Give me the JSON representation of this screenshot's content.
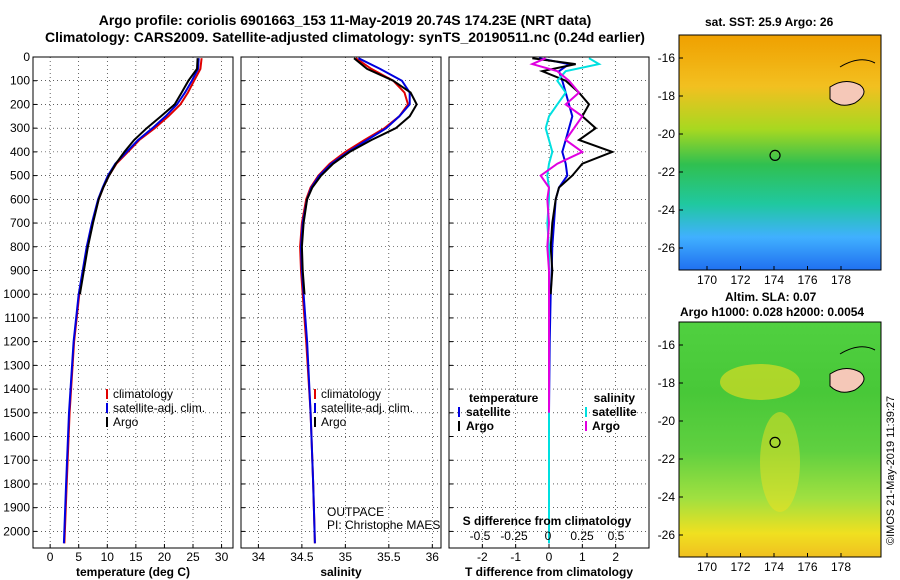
{
  "header": {
    "line1": "Argo profile: coriolis 6901663_153 11-May-2019 20.74S 174.23E (NRT data)",
    "line2": "Climatology: CARS2009. Satellite-adjusted climatology: synTS_20190511.nc (0.24d earlier)"
  },
  "colors": {
    "climatology": "#e00000",
    "satellite": "#0000e0",
    "argo": "#000000",
    "sat_salinity": "#00e0e0",
    "argo_salinity": "#e000e0"
  },
  "chart_data": [
    {
      "type": "line",
      "title": "",
      "xlabel": "temperature (deg C)",
      "ylabel": "",
      "xlim": [
        -3,
        32
      ],
      "ylim": [
        2070,
        0
      ],
      "xticks": [
        "0",
        "5",
        "10",
        "15",
        "20",
        "25",
        "30"
      ],
      "yticks": [
        "0",
        "100",
        "200",
        "300",
        "400",
        "500",
        "600",
        "700",
        "800",
        "900",
        "1000",
        "1100",
        "1200",
        "1300",
        "1400",
        "1500",
        "1600",
        "1700",
        "1800",
        "1900",
        "2000"
      ],
      "legend": [
        "climatology",
        "satellite-adj. clim.",
        "Argo"
      ],
      "series": [
        {
          "name": "climatology",
          "depth": [
            5,
            50,
            100,
            150,
            200,
            250,
            300,
            350,
            400,
            450,
            500,
            550,
            600,
            700,
            800,
            900,
            1000,
            1200,
            1500,
            1800,
            2050
          ],
          "values": [
            26.5,
            26.3,
            25.2,
            24.1,
            22.8,
            20.7,
            18.3,
            15.6,
            13.6,
            11.6,
            10.3,
            9.3,
            8.5,
            7.4,
            6.5,
            5.8,
            5.1,
            4.2,
            3.4,
            2.9,
            2.5
          ]
        },
        {
          "name": "satellite-adj. clim.",
          "depth": [
            5,
            50,
            100,
            150,
            200,
            250,
            300,
            350,
            400,
            450,
            500,
            550,
            600,
            700,
            800,
            900,
            1000,
            1200,
            1500,
            1800,
            2050
          ],
          "values": [
            26.0,
            25.9,
            24.8,
            23.6,
            22.2,
            20.2,
            17.9,
            15.4,
            13.4,
            11.4,
            10.1,
            9.2,
            8.4,
            7.3,
            6.4,
            5.7,
            5.0,
            4.1,
            3.3,
            2.8,
            2.4
          ]
        },
        {
          "name": "Argo",
          "depth": [
            5,
            50,
            100,
            150,
            200,
            250,
            300,
            350,
            400,
            450,
            500,
            550,
            600,
            700,
            800,
            900,
            1000
          ],
          "values": [
            25.8,
            25.7,
            24.2,
            23.0,
            21.8,
            19.4,
            16.9,
            14.7,
            13.0,
            11.5,
            10.3,
            9.3,
            8.5,
            7.5,
            6.6,
            5.9,
            5.2
          ]
        }
      ]
    },
    {
      "type": "line",
      "xlabel": "salinity",
      "xlim": [
        33.8,
        36.1
      ],
      "ylim": [
        2070,
        0
      ],
      "xticks": [
        "34",
        "34.5",
        "35",
        "35.5",
        "36"
      ],
      "legend": [
        "climatology",
        "satellite-adj. clim.",
        "Argo"
      ],
      "annotation": [
        "OUTPACE",
        "PI: Christophe MAES"
      ],
      "series": [
        {
          "name": "climatology",
          "depth": [
            5,
            50,
            100,
            150,
            200,
            250,
            300,
            350,
            400,
            450,
            500,
            550,
            600,
            700,
            800,
            900,
            1000,
            1200,
            1500,
            1800,
            2050
          ],
          "values": [
            35.12,
            35.3,
            35.55,
            35.68,
            35.72,
            35.62,
            35.45,
            35.22,
            35.0,
            34.82,
            34.69,
            34.6,
            34.55,
            34.5,
            34.48,
            34.49,
            34.51,
            34.55,
            34.6,
            34.63,
            34.65
          ]
        },
        {
          "name": "satellite-adj. clim.",
          "depth": [
            5,
            50,
            100,
            150,
            200,
            250,
            300,
            350,
            400,
            450,
            500,
            550,
            600,
            700,
            800,
            900,
            1000,
            1200,
            1500,
            1800,
            2050
          ],
          "values": [
            35.15,
            35.4,
            35.65,
            35.74,
            35.74,
            35.62,
            35.47,
            35.25,
            35.03,
            34.84,
            34.7,
            34.61,
            34.56,
            34.51,
            34.49,
            34.5,
            34.52,
            34.56,
            34.6,
            34.63,
            34.65
          ]
        },
        {
          "name": "Argo",
          "depth": [
            5,
            50,
            100,
            150,
            200,
            250,
            300,
            350,
            400,
            450,
            500,
            550,
            600,
            700,
            800,
            900,
            1000
          ],
          "values": [
            35.1,
            35.25,
            35.55,
            35.75,
            35.82,
            35.74,
            35.58,
            35.3,
            35.05,
            34.86,
            34.72,
            34.62,
            34.56,
            34.52,
            34.5,
            34.51,
            34.53
          ]
        }
      ]
    },
    {
      "type": "line",
      "xlabel": "T difference from climatology",
      "toplabel": "S difference from climatology",
      "xlim": [
        -3,
        3
      ],
      "ylim": [
        2070,
        0
      ],
      "xticks": [
        "-2",
        "-1",
        "0",
        "1",
        "2"
      ],
      "topticks": [
        "-0.5",
        "-0.25",
        "0",
        "0.25",
        "0.5"
      ],
      "legend_left_title": "temperature",
      "legend_right_title": "salinity",
      "legend_left": [
        "satellite",
        "Argo"
      ],
      "legend_right": [
        "satellite",
        "Argo"
      ],
      "series": [
        {
          "name": "T satellite",
          "depth": [
            5,
            30,
            60,
            100,
            150,
            200,
            250,
            300,
            350,
            400,
            450,
            500,
            550,
            600,
            700,
            800,
            900,
            1000,
            1200,
            1500,
            1800,
            2050
          ],
          "values": [
            -0.3,
            0.6,
            0.3,
            0.4,
            0.5,
            0.6,
            0.7,
            0.6,
            0.5,
            0.4,
            0.5,
            0.55,
            0.3,
            0.2,
            0.15,
            0.1,
            0.08,
            0.05,
            0.02,
            0.0,
            0.0,
            0.0
          ]
        },
        {
          "name": "T Argo",
          "depth": [
            5,
            30,
            60,
            100,
            150,
            200,
            250,
            300,
            350,
            400,
            450,
            500,
            550,
            600,
            700,
            800,
            900,
            1000
          ],
          "values": [
            -0.5,
            0.8,
            -0.2,
            0.5,
            0.9,
            1.2,
            1.0,
            1.4,
            0.9,
            1.9,
            1.0,
            0.7,
            0.3,
            0.2,
            0.1,
            0.05,
            0.1,
            0.05
          ]
        },
        {
          "name": "S satellite",
          "depth": [
            5,
            30,
            60,
            100,
            150,
            200,
            250,
            300,
            350,
            400,
            450,
            500,
            550,
            600,
            700,
            800,
            900,
            1000,
            1200,
            1500,
            1800,
            2050
          ],
          "values": [
            0.24,
            0.3,
            0.1,
            0.05,
            0.1,
            0.05,
            0.0,
            -0.02,
            0.0,
            0.02,
            0.0,
            -0.01,
            0.0,
            0.0,
            -0.01,
            0.0,
            0.0,
            0.0,
            0.0,
            0.0,
            0.0,
            0.0
          ]
        },
        {
          "name": "S Argo",
          "depth": [
            5,
            30,
            60,
            100,
            150,
            200,
            250,
            300,
            350,
            400,
            450,
            500,
            550,
            600,
            700,
            800,
            900,
            1000,
            1200,
            1500
          ],
          "values": [
            -0.02,
            -0.1,
            0.05,
            0.12,
            0.18,
            0.1,
            0.2,
            0.15,
            0.1,
            0.2,
            0.05,
            -0.05,
            0.0,
            -0.01,
            0.0,
            -0.01,
            0.0,
            0.0,
            0.0,
            0.0
          ]
        }
      ]
    },
    {
      "type": "heatmap",
      "title": "sat. SST: 25.9 Argo: 26",
      "xticks": [
        "170",
        "172",
        "174",
        "176",
        "178"
      ],
      "yticks": [
        "-16",
        "-18",
        "-20",
        "-22",
        "-24",
        "-26"
      ],
      "marker": {
        "lon": 174.23,
        "lat": -20.74
      }
    },
    {
      "type": "heatmap",
      "title": "Altim. SLA: 0.07",
      "subtitle": "Argo h1000: 0.028 h2000: 0.0054",
      "xticks": [
        "170",
        "172",
        "174",
        "176",
        "178"
      ],
      "yticks": [
        "-16",
        "-18",
        "-20",
        "-22",
        "-24",
        "-26"
      ],
      "marker": {
        "lon": 174.23,
        "lat": -20.74
      }
    }
  ],
  "credit": "©IMOS 21-May-2019 11:39:27"
}
